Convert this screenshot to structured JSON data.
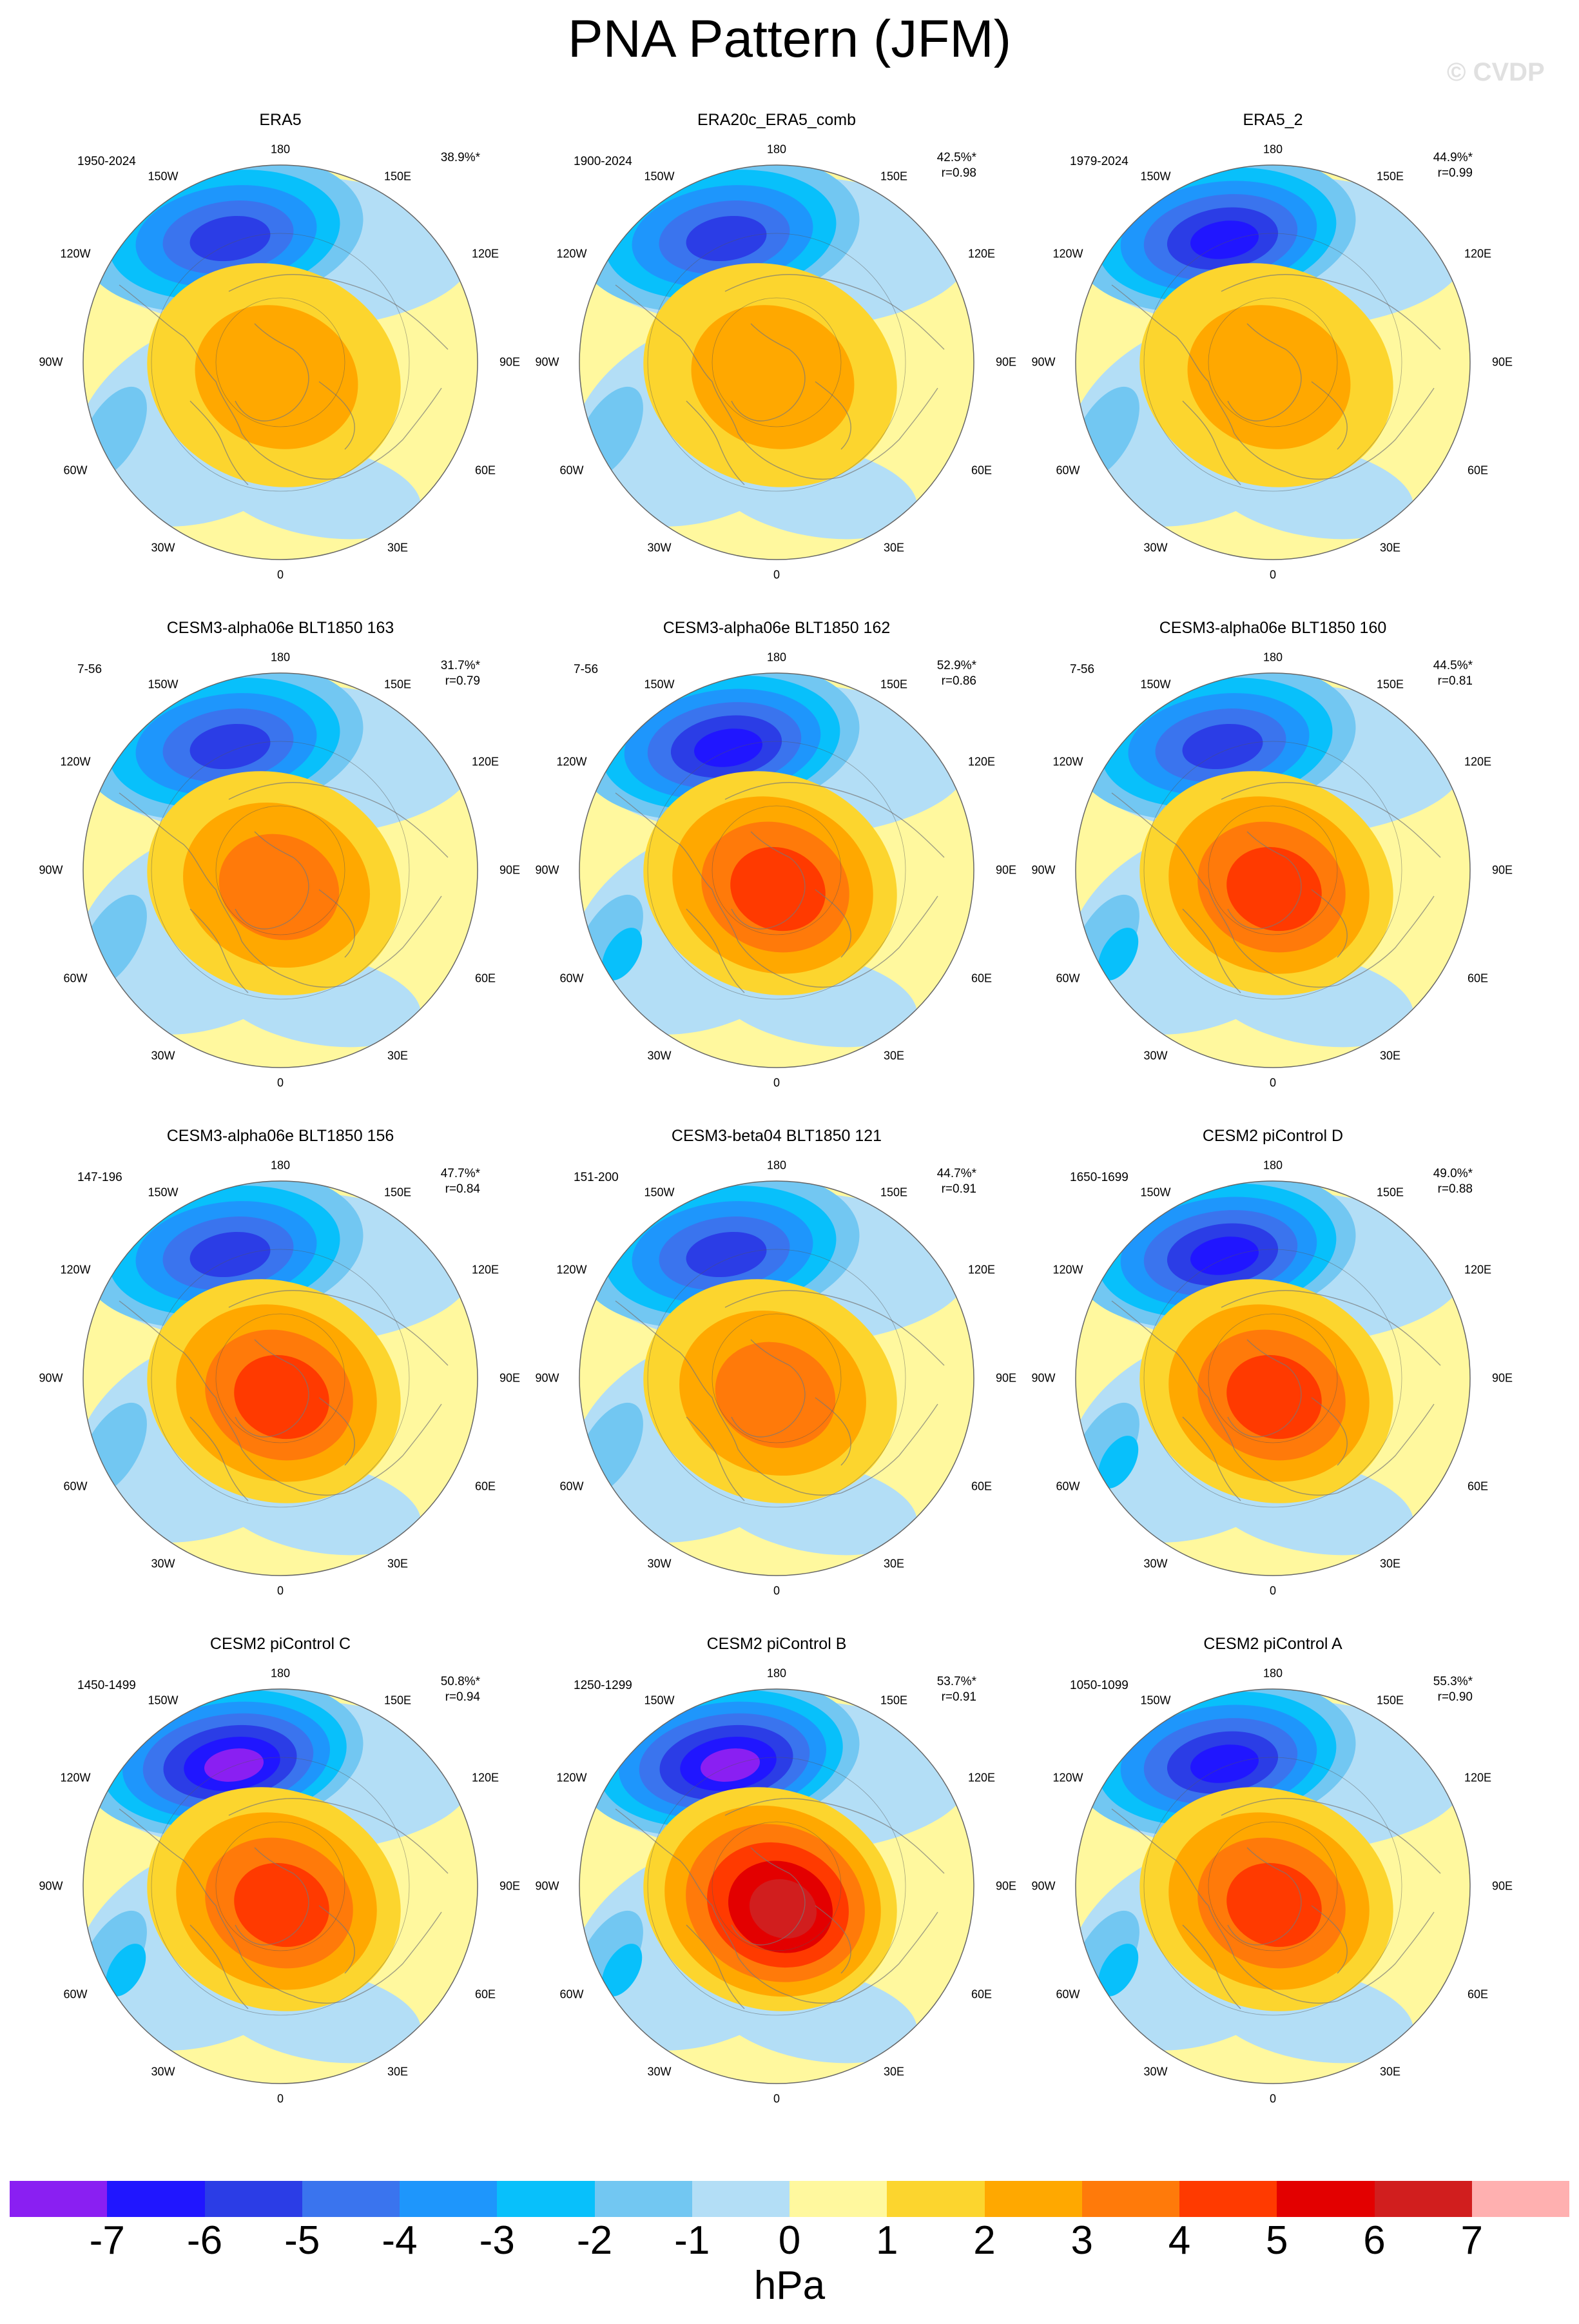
{
  "title": "PNA Pattern (JFM)",
  "watermark": "© CVDP",
  "lon_labels": {
    "top": "180",
    "bottom": "0",
    "l150": "150W",
    "l120": "120W",
    "l90": "90W",
    "l60": "60W",
    "l30": "30W",
    "r150": "150E",
    "r120": "120E",
    "r90": "90E",
    "r60": "60E",
    "r30": "30E"
  },
  "colors": [
    "#8a1ff2",
    "#2016ff",
    "#2b3de6",
    "#3a74ee",
    "#1e96fc",
    "#08c0fb",
    "#72c7f2",
    "#b3def6",
    "#fff89e",
    "#fcd52e",
    "#ffa800",
    "#ff7a0a",
    "#ff3a00",
    "#e30000",
    "#d11e1e",
    "#ffb0b0"
  ],
  "panels": [
    {
      "title": "ERA5",
      "period": "1950-2024",
      "pct": "38.9%*",
      "corr": ""
    },
    {
      "title": "ERA20c_ERA5_comb",
      "period": "1900-2024",
      "pct": "42.5%*",
      "corr": "r=0.98"
    },
    {
      "title": "ERA5_2",
      "period": "1979-2024",
      "pct": "44.9%*",
      "corr": "r=0.99"
    },
    {
      "title": "CESM3-alpha06e BLT1850 163",
      "period": "7-56",
      "pct": "31.7%*",
      "corr": "r=0.79"
    },
    {
      "title": "CESM3-alpha06e BLT1850 162",
      "period": "7-56",
      "pct": "52.9%*",
      "corr": "r=0.86"
    },
    {
      "title": "CESM3-alpha06e BLT1850 160",
      "period": "7-56",
      "pct": "44.5%*",
      "corr": "r=0.81"
    },
    {
      "title": "CESM3-alpha06e BLT1850 156",
      "period": "147-196",
      "pct": "47.7%*",
      "corr": "r=0.84"
    },
    {
      "title": "CESM3-beta04 BLT1850 121",
      "period": "151-200",
      "pct": "44.7%*",
      "corr": "r=0.91"
    },
    {
      "title": "CESM2 piControl D",
      "period": "1650-1699",
      "pct": "49.0%*",
      "corr": "r=0.88"
    },
    {
      "title": "CESM2 piControl C",
      "period": "1450-1499",
      "pct": "50.8%*",
      "corr": "r=0.94"
    },
    {
      "title": "CESM2 piControl B",
      "period": "1250-1299",
      "pct": "53.7%*",
      "corr": "r=0.91"
    },
    {
      "title": "CESM2 piControl A",
      "period": "1050-1099",
      "pct": "55.3%*",
      "corr": "r=0.90"
    }
  ],
  "colorbar": {
    "labels": [
      "-7",
      "-6",
      "-5",
      "-4",
      "-3",
      "-2",
      "-1",
      "0",
      "1",
      "2",
      "3",
      "4",
      "5",
      "6",
      "7"
    ],
    "units": "hPa"
  }
}
